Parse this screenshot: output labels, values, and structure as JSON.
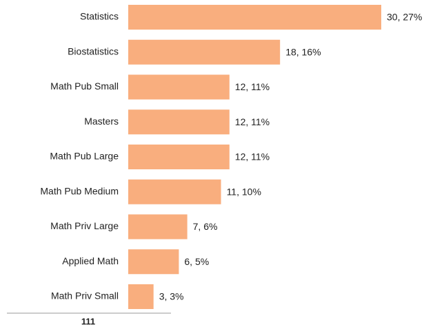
{
  "chart_data": {
    "type": "bar",
    "orientation": "horizontal",
    "categories": [
      "Statistics",
      "Biostatistics",
      "Math Pub Small",
      "Masters",
      "Math Pub Large",
      "Math Pub Medium",
      "Math Priv Large",
      "Applied Math",
      "Math Priv Small"
    ],
    "values": [
      30,
      18,
      12,
      12,
      12,
      11,
      7,
      6,
      3
    ],
    "value_labels": [
      "30, 27%",
      "18, 16%",
      "12, 11%",
      "12, 11%",
      "12, 11%",
      "11, 10%",
      "7, 6%",
      "6, 5%",
      "3, 3%"
    ],
    "color": "#f9ae7e",
    "total": 111
  }
}
